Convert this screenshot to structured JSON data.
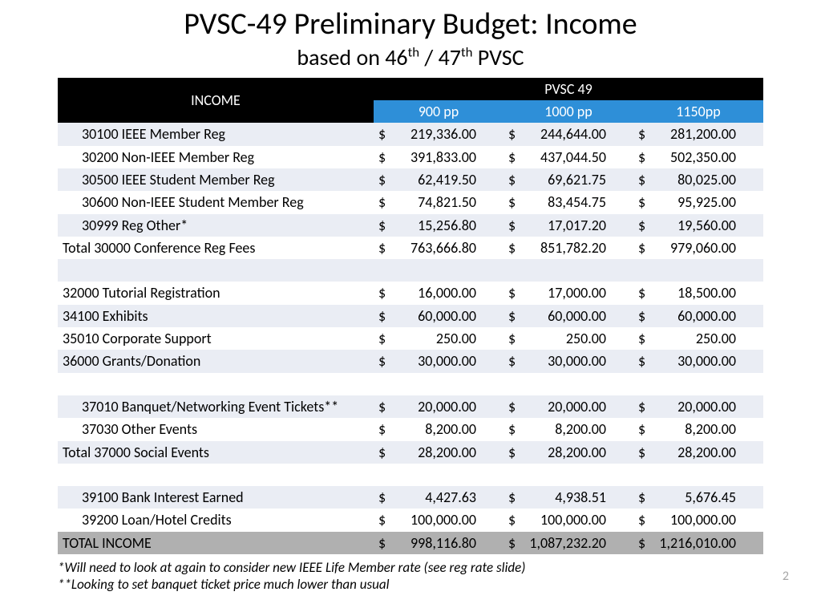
{
  "title": "PVSC-49 Preliminary Budget: Income",
  "subtitle_prefix": "based on 46",
  "subtitle_mid": " / 47",
  "subtitle_suffix": " PVSC",
  "sup": "th",
  "header": {
    "income": "INCOME",
    "group": "PVSC 49",
    "cols": [
      "900 pp",
      "1000 pp",
      "1150pp"
    ]
  },
  "rows": [
    {
      "label": "30100 IEEE Member Reg",
      "indent": true,
      "vals": [
        "219,336.00",
        "244,644.00",
        "281,200.00"
      ],
      "cls": "a"
    },
    {
      "label": "30200 Non-IEEE Member Reg",
      "indent": true,
      "vals": [
        "391,833.00",
        "437,044.50",
        "502,350.00"
      ],
      "cls": "b"
    },
    {
      "label": "30500 IEEE Student Member Reg",
      "indent": true,
      "vals": [
        "62,419.50",
        "69,621.75",
        "80,025.00"
      ],
      "cls": "a"
    },
    {
      "label": "30600 Non-IEEE Student Member Reg",
      "indent": true,
      "vals": [
        "74,821.50",
        "83,454.75",
        "95,925.00"
      ],
      "cls": "b"
    },
    {
      "label": "30999 Reg Other*",
      "indent": true,
      "vals": [
        "15,256.80",
        "17,017.20",
        "19,560.00"
      ],
      "cls": "a"
    },
    {
      "label": "Total 30000 Conference Reg Fees",
      "indent": false,
      "vals": [
        "763,666.80",
        "851,782.20",
        "979,060.00"
      ],
      "cls": "b"
    },
    {
      "label": "",
      "indent": false,
      "vals": [
        "",
        "",
        ""
      ],
      "cls": "a",
      "blank": true
    },
    {
      "label": "32000 Tutorial Registration",
      "indent": false,
      "vals": [
        "16,000.00",
        "17,000.00",
        "18,500.00"
      ],
      "cls": "b"
    },
    {
      "label": "34100 Exhibits",
      "indent": false,
      "vals": [
        "60,000.00",
        "60,000.00",
        "60,000.00"
      ],
      "cls": "a"
    },
    {
      "label": "35010 Corporate Support",
      "indent": false,
      "vals": [
        "250.00",
        "250.00",
        "250.00"
      ],
      "cls": "b"
    },
    {
      "label": "36000 Grants/Donation",
      "indent": false,
      "vals": [
        "30,000.00",
        "30,000.00",
        "30,000.00"
      ],
      "cls": "a"
    },
    {
      "label": "",
      "indent": false,
      "vals": [
        "",
        "",
        ""
      ],
      "cls": "b",
      "blank": true
    },
    {
      "label": "37010 Banquet/Networking Event Tickets**",
      "indent": true,
      "vals": [
        "20,000.00",
        "20,000.00",
        "20,000.00"
      ],
      "cls": "a"
    },
    {
      "label": "37030 Other Events",
      "indent": true,
      "vals": [
        "8,200.00",
        "8,200.00",
        "8,200.00"
      ],
      "cls": "b"
    },
    {
      "label": "Total 37000 Social Events",
      "indent": false,
      "vals": [
        "28,200.00",
        "28,200.00",
        "28,200.00"
      ],
      "cls": "a"
    },
    {
      "label": "",
      "indent": false,
      "vals": [
        "",
        "",
        ""
      ],
      "cls": "b",
      "blank": true
    },
    {
      "label": "39100 Bank Interest Earned",
      "indent": true,
      "vals": [
        "4,427.63",
        "4,938.51",
        "5,676.45"
      ],
      "cls": "a"
    },
    {
      "label": "39200 Loan/Hotel Credits",
      "indent": true,
      "vals": [
        "100,000.00",
        "100,000.00",
        "100,000.00"
      ],
      "cls": "b"
    }
  ],
  "total": {
    "label": "TOTAL INCOME",
    "vals": [
      "998,116.80",
      "1,087,232.20",
      "1,216,010.00"
    ]
  },
  "footnote1": "*Will need to look at again to consider new IEEE Life Member rate (see reg rate slide)",
  "footnote2": "**Looking to set banquet ticket price much lower than usual",
  "pagenum": "2",
  "colors": {
    "header_black": "#000000",
    "header_blue": "#2e8fd8",
    "row_a": "#eaedf4",
    "row_b": "#ffffff",
    "row_total": "#b0b0b0",
    "pagenum": "#a6a6a6"
  }
}
